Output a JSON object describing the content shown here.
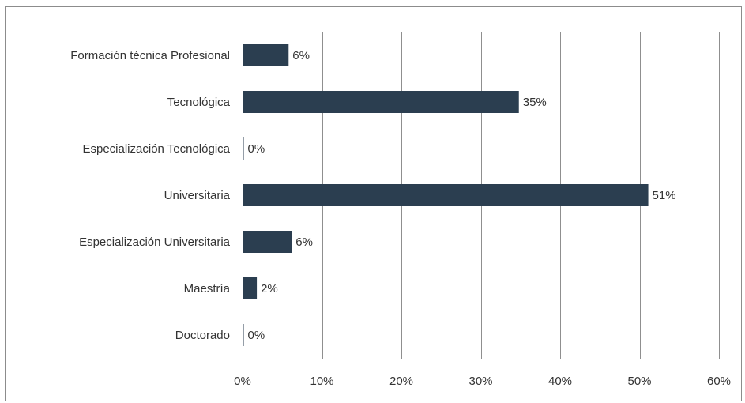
{
  "chart_data": {
    "type": "bar",
    "orientation": "horizontal",
    "categories": [
      "Formación técnica Profesional",
      "Tecnológica",
      "Especialización Tecnológica",
      "Universitaria",
      "Especialización Universitaria",
      "Maestría",
      "Doctorado"
    ],
    "values": [
      6,
      35,
      0,
      51,
      6,
      2,
      0
    ],
    "value_fractions": [
      0.058,
      0.348,
      0.001,
      0.511,
      0.062,
      0.018,
      0.001
    ],
    "data_labels": [
      "6%",
      "35%",
      "0%",
      "51%",
      "6%",
      "2%",
      "0%"
    ],
    "x_ticks": [
      "0%",
      "10%",
      "20%",
      "30%",
      "40%",
      "50%",
      "60%"
    ],
    "xlim": [
      0,
      0.6
    ],
    "title": "",
    "xlabel": "",
    "ylabel": "",
    "grid": true,
    "grid_axis": "x",
    "legend": "none",
    "bar_color": "#2b3e50",
    "grid_color": "#8f8f8f"
  }
}
